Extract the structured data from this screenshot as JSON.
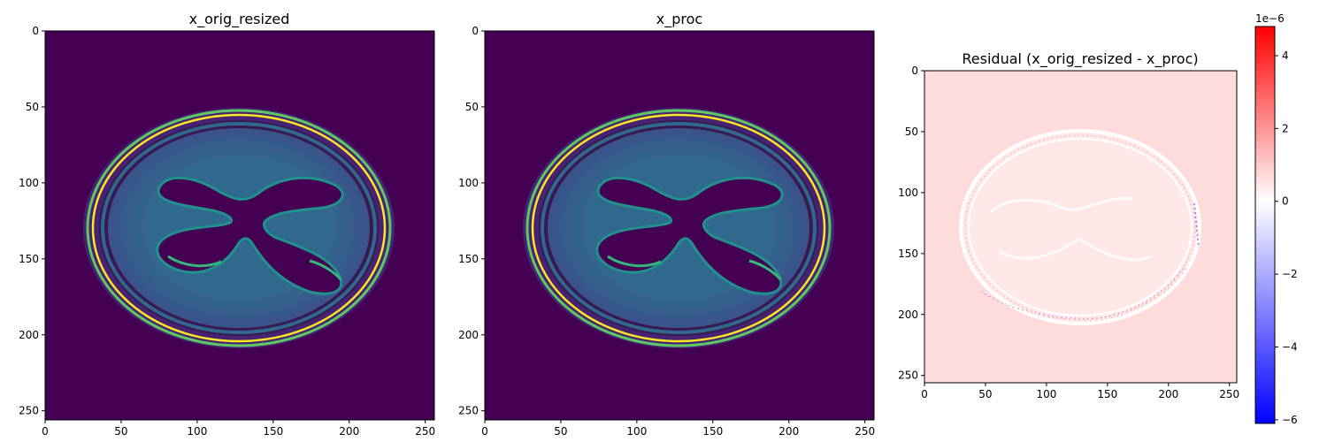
{
  "panels": [
    {
      "title": "x_orig_resized",
      "kind": "image",
      "colormap": "viridis",
      "x_ticks": [
        "0",
        "50",
        "100",
        "150",
        "200",
        "250"
      ],
      "y_ticks": [
        "0",
        "50",
        "100",
        "150",
        "200",
        "250"
      ],
      "x_range": [
        0,
        256
      ],
      "y_range": [
        0,
        256
      ]
    },
    {
      "title": "x_proc",
      "kind": "image",
      "colormap": "viridis",
      "x_ticks": [
        "0",
        "50",
        "100",
        "150",
        "200",
        "250"
      ],
      "y_ticks": [
        "0",
        "50",
        "100",
        "150",
        "200",
        "250"
      ],
      "x_range": [
        0,
        256
      ],
      "y_range": [
        0,
        256
      ]
    },
    {
      "title": "Residual (x_orig_resized - x_proc)",
      "kind": "residual",
      "colormap": "bwr",
      "x_ticks": [
        "0",
        "50",
        "100",
        "150",
        "200",
        "250"
      ],
      "y_ticks": [
        "0",
        "50",
        "100",
        "150",
        "200",
        "250"
      ],
      "x_range": [
        0,
        256
      ],
      "y_range": [
        0,
        256
      ]
    }
  ],
  "colorbar": {
    "exponent_label": "1e−6",
    "ticks": [
      "4",
      "2",
      "0",
      "−2",
      "−4",
      "−6"
    ],
    "tick_values": [
      4,
      2,
      0,
      -2,
      -4,
      -6
    ],
    "range": [
      -6.1,
      4.8
    ],
    "colors": {
      "low": "#0000ff",
      "mid": "#ffffff",
      "high": "#ff0000"
    }
  },
  "colors": {
    "viridis_bg": "#440154",
    "viridis_tissue": "#3b528b",
    "viridis_bright": "#fde725",
    "viridis_mid": "#21918c",
    "residual_bg": "#ffdcdc"
  }
}
